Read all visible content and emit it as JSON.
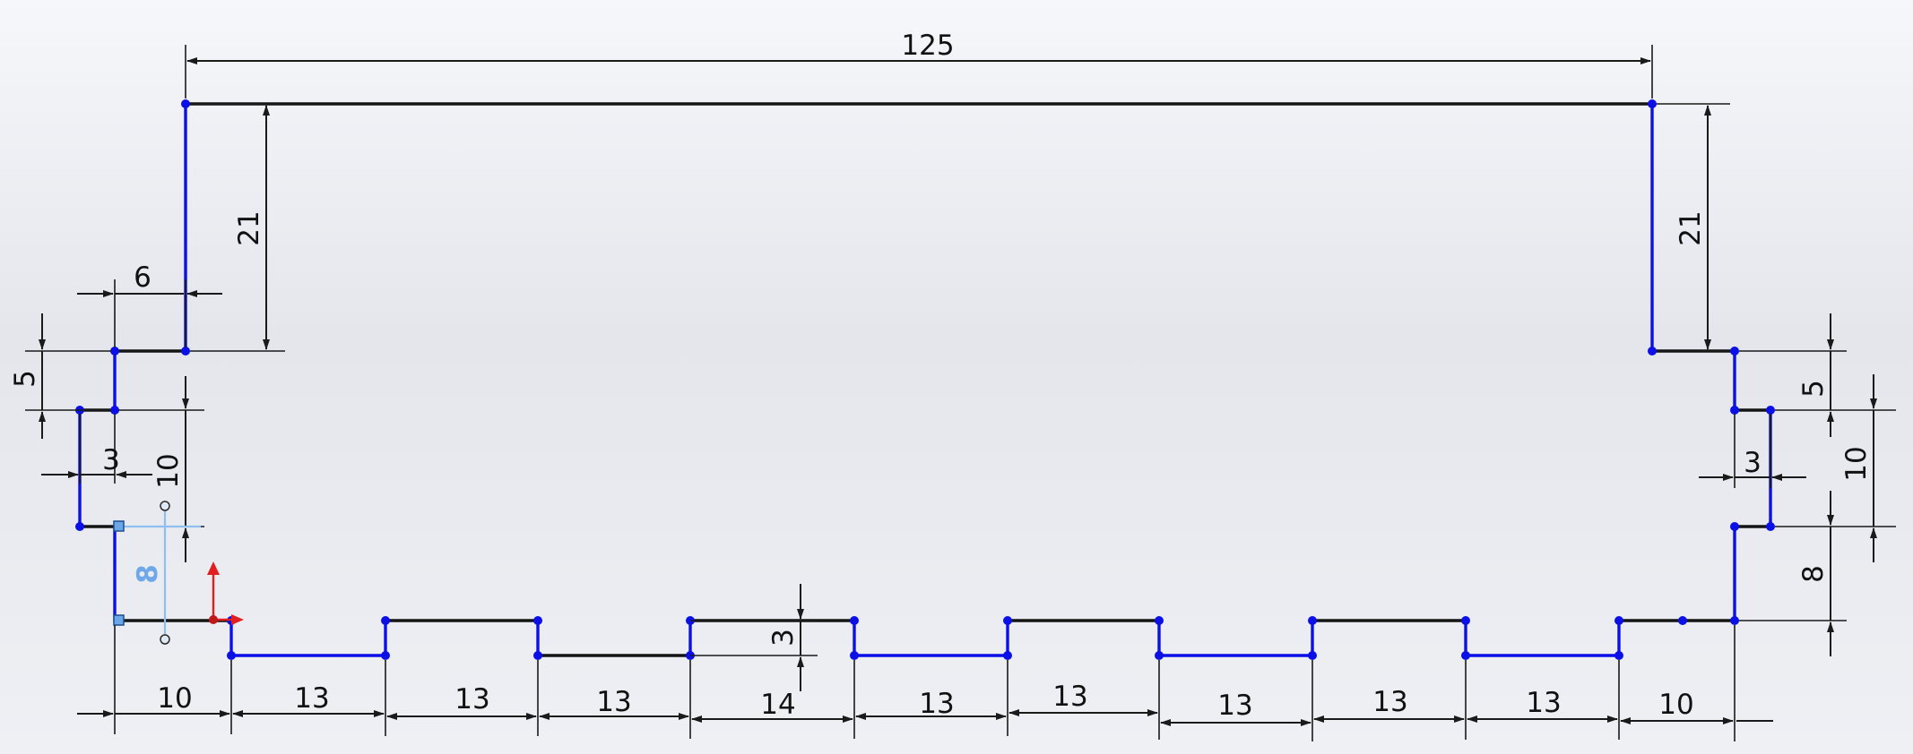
{
  "sketch": {
    "dimensions": {
      "top_width": "125",
      "left_height": "21",
      "right_height": "21",
      "left_step": "6",
      "left_offset_5": "5",
      "left_offset_3": "3",
      "left_height_10": "10",
      "left_height_8": "8",
      "right_offset_5": "5",
      "right_offset_3": "3",
      "right_height_10": "10",
      "right_height_8": "8",
      "tooth_depth": "3",
      "bottom_segments": [
        "10",
        "13",
        "13",
        "13",
        "14",
        "13",
        "13",
        "13",
        "13",
        "13",
        "10"
      ]
    },
    "colors": {
      "constrained": "#141414",
      "underdefined": "#0a10e6",
      "selected_dimension": "#6fa8e8",
      "origin_y_axis": "#e02020"
    },
    "icons": {
      "origin": "origin-icon"
    }
  }
}
